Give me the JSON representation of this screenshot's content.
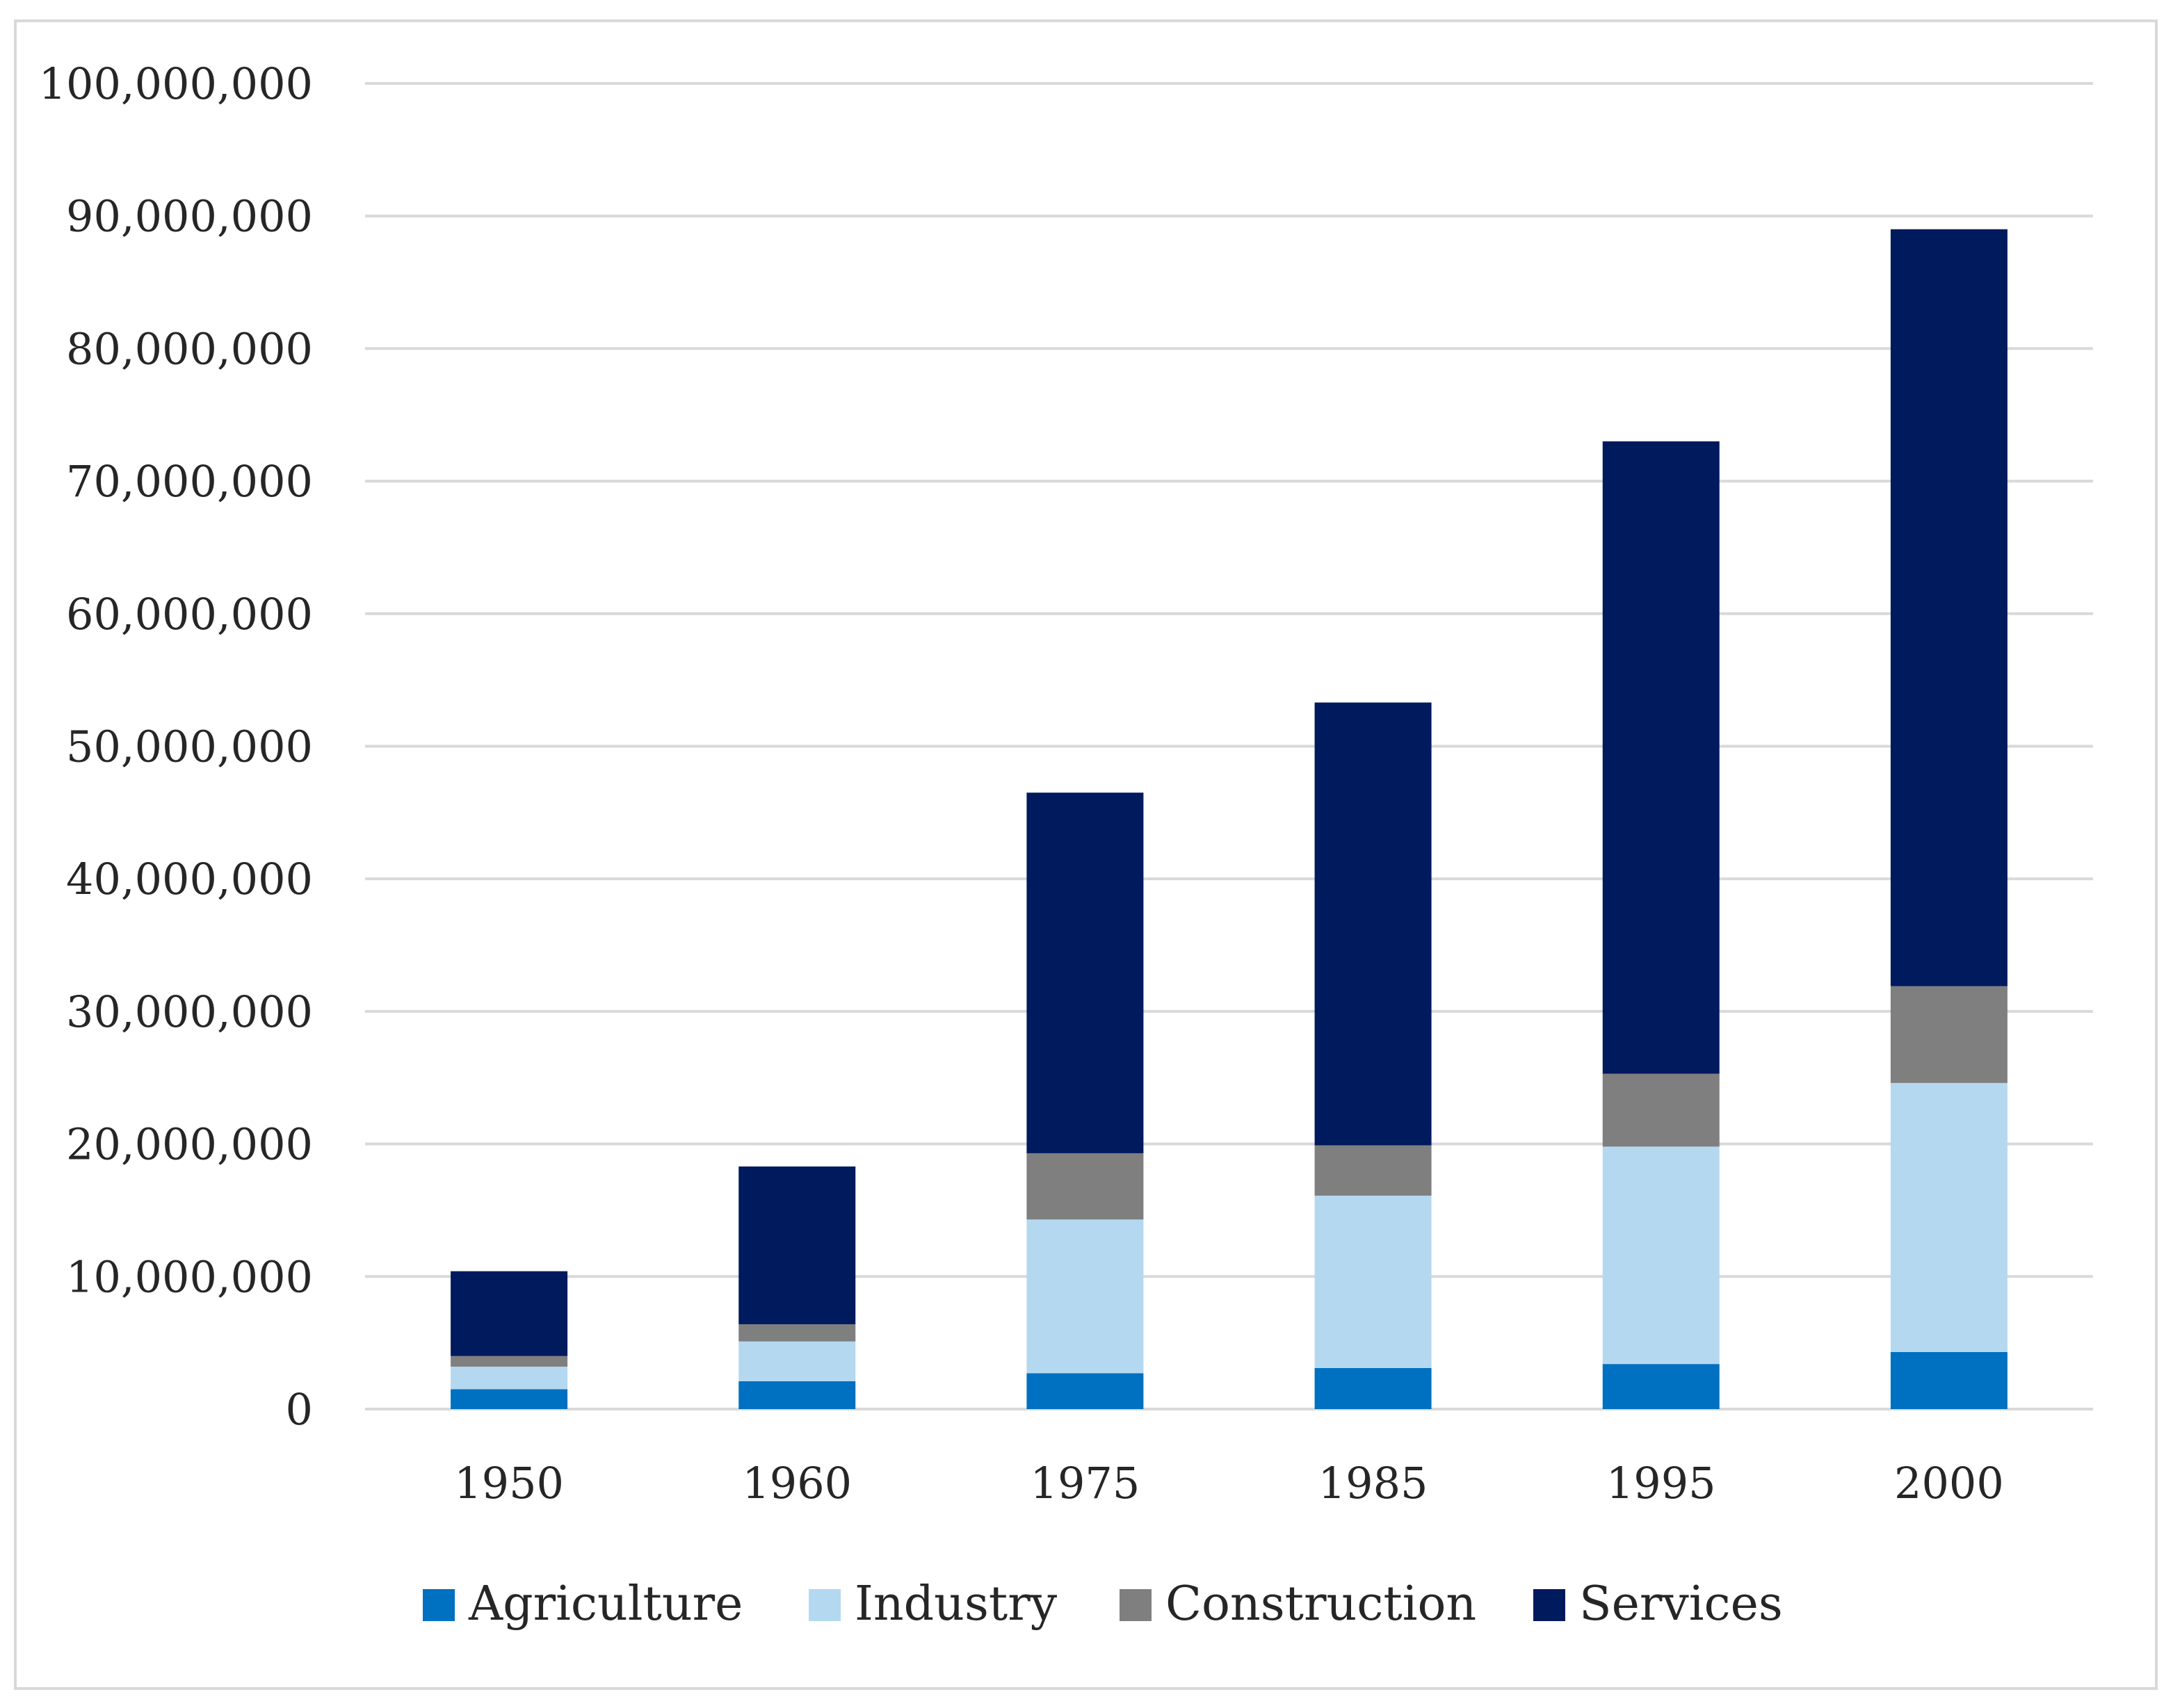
{
  "chart_data": {
    "type": "bar",
    "stacked": true,
    "title": "",
    "xlabel": "",
    "ylabel": "",
    "categories": [
      "1950",
      "1960",
      "1975",
      "1985",
      "1995",
      "2000"
    ],
    "ylim": [
      0,
      100000000
    ],
    "yticks": [
      0,
      10000000,
      20000000,
      30000000,
      40000000,
      50000000,
      60000000,
      70000000,
      80000000,
      90000000,
      100000000
    ],
    "ytick_labels": [
      "0",
      "10,000,000",
      "20,000,000",
      "30,000,000",
      "40,000,000",
      "50,000,000",
      "60,000,000",
      "70,000,000",
      "80,000,000",
      "90,000,000",
      "100,000,000"
    ],
    "grid": true,
    "legend_position": "bottom",
    "series": [
      {
        "name": "Agriculture",
        "color": "#0070c0",
        "values": [
          1500000,
          2100000,
          2700000,
          3100000,
          3400000,
          4300000
        ]
      },
      {
        "name": "Industry",
        "color": "#b4d8f0",
        "values": [
          1700000,
          3000000,
          11600000,
          13000000,
          16400000,
          20300000
        ]
      },
      {
        "name": "Construction",
        "color": "#7f7f7f",
        "values": [
          800000,
          1300000,
          5000000,
          3800000,
          5500000,
          7300000
        ]
      },
      {
        "name": "Services",
        "color": "#001a5e",
        "values": [
          6400000,
          11900000,
          27200000,
          33400000,
          47700000,
          57100000
        ]
      }
    ]
  }
}
